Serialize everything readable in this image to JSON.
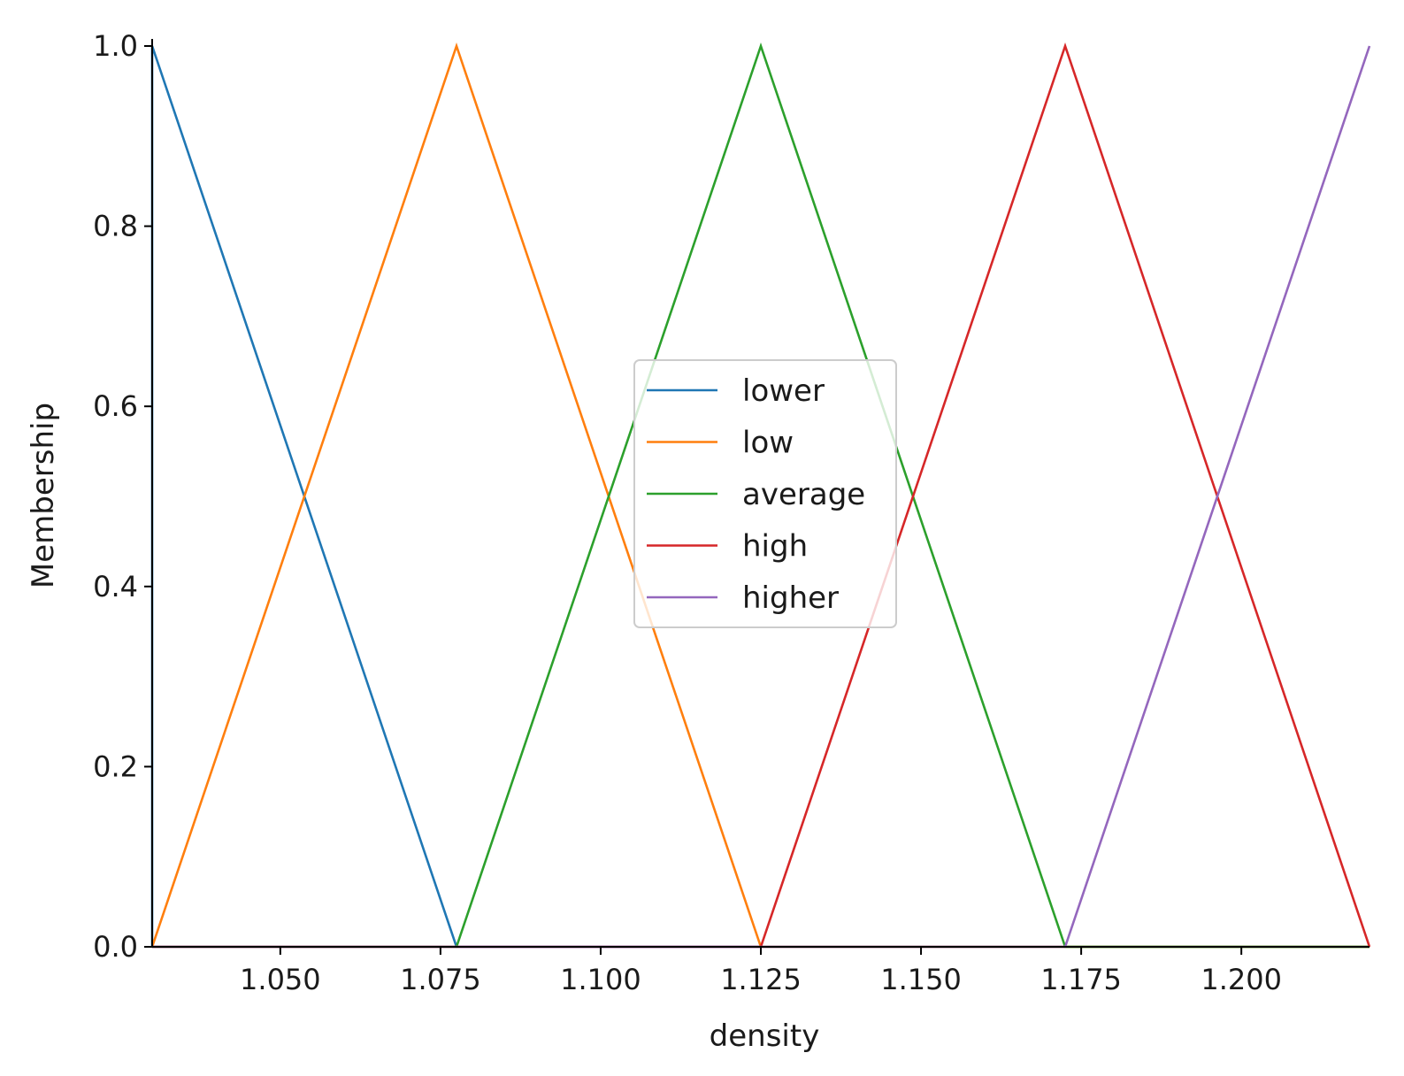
{
  "chart_data": {
    "type": "line",
    "xlabel": "density",
    "ylabel": "Membership",
    "xlim": [
      1.03,
      1.22
    ],
    "ylim": [
      0.0,
      1.0
    ],
    "x_ticks": [
      1.05,
      1.075,
      1.1,
      1.125,
      1.15,
      1.175,
      1.2
    ],
    "x_tick_labels": [
      "1.050",
      "1.075",
      "1.100",
      "1.125",
      "1.150",
      "1.175",
      "1.200"
    ],
    "y_ticks": [
      0.0,
      0.2,
      0.4,
      0.6,
      0.8,
      1.0
    ],
    "y_tick_labels": [
      "0.0",
      "0.2",
      "0.4",
      "0.6",
      "0.8",
      "1.0"
    ],
    "grid": false,
    "legend_position": "center",
    "series": [
      {
        "name": "lower",
        "color": "#1f77b4",
        "x": [
          1.03,
          1.03,
          1.0775,
          1.22
        ],
        "y": [
          0,
          1,
          0,
          0
        ]
      },
      {
        "name": "low",
        "color": "#ff7f0e",
        "x": [
          1.03,
          1.0775,
          1.125,
          1.22
        ],
        "y": [
          0,
          1,
          0,
          0
        ]
      },
      {
        "name": "average",
        "color": "#2ca02c",
        "x": [
          1.03,
          1.0775,
          1.125,
          1.1725,
          1.22
        ],
        "y": [
          0,
          0,
          1,
          0,
          0
        ]
      },
      {
        "name": "high",
        "color": "#d62728",
        "x": [
          1.03,
          1.125,
          1.1725,
          1.22
        ],
        "y": [
          0,
          0,
          1,
          0
        ]
      },
      {
        "name": "higher",
        "color": "#9467bd",
        "x": [
          1.03,
          1.1725,
          1.22,
          1.22
        ],
        "y": [
          0,
          0,
          1,
          1
        ]
      }
    ]
  }
}
